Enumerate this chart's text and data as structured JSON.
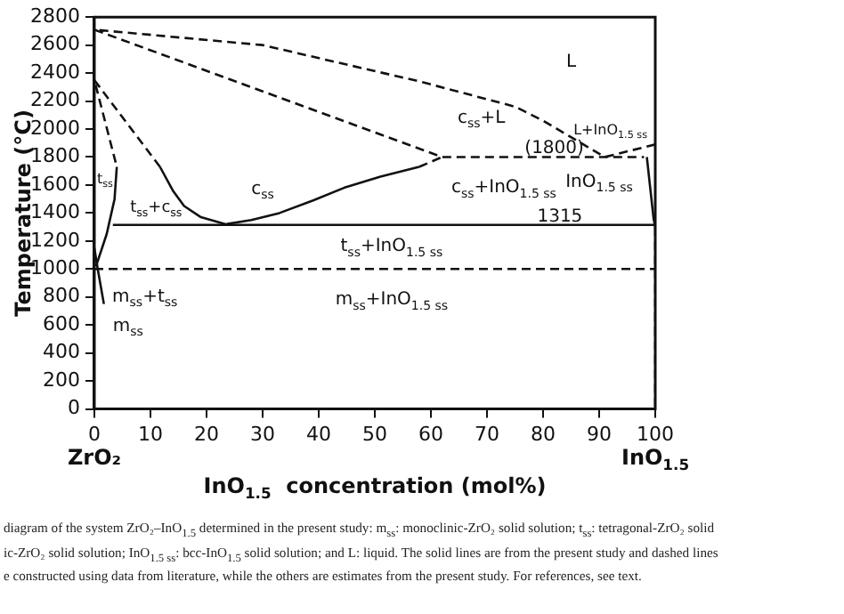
{
  "chart_data": {
    "type": "line",
    "xlabel": "InO$_{1.5}$  concentration (mol%)",
    "ylabel": "Temperature (°C)",
    "xlim": [
      0,
      100
    ],
    "ylim": [
      0,
      2800
    ],
    "xticks": [
      0,
      10,
      20,
      30,
      40,
      50,
      60,
      70,
      80,
      90,
      100
    ],
    "yticks": [
      0,
      200,
      400,
      600,
      800,
      1000,
      1200,
      1400,
      1600,
      1800,
      2000,
      2200,
      2400,
      2600,
      2800
    ],
    "grid": false,
    "legend": false,
    "marker": "none",
    "series": [
      {
        "color": "#111111",
        "line_style": "dashed",
        "x": [
          100,
          91,
          80,
          75,
          58,
          30,
          0,
          62,
          98
        ],
        "values": [
          1890,
          1800,
          2060,
          2160,
          2340,
          2600,
          2710,
          1800,
          1800
        ]
      },
      {
        "color": "#111111",
        "line_style": "solid",
        "x": [
          98.5,
          99.7,
          100
        ],
        "values": [
          1800,
          1360,
          1300
        ]
      },
      {
        "color": "#111111",
        "line_style": "dashed",
        "x": [
          11.7,
          0,
          4
        ],
        "values": [
          1730,
          2350,
          1730
        ]
      },
      {
        "color": "#111111",
        "line_style": "solid",
        "x": [
          11.7,
          14,
          16,
          19,
          23.4,
          28,
          33,
          39,
          44.5,
          51,
          57.9
        ],
        "values": [
          1730,
          1560,
          1450,
          1370,
          1320,
          1350,
          1400,
          1490,
          1580,
          1660,
          1730
        ]
      },
      {
        "color": "#111111",
        "line_style": "dashed",
        "x": [
          57.9,
          62
        ],
        "values": [
          1730,
          1800
        ]
      },
      {
        "color": "#111111",
        "line_style": "solid",
        "x": [
          4,
          3.6,
          2.2,
          0.3
        ],
        "values": [
          1730,
          1500,
          1250,
          1020
        ]
      },
      {
        "color": "#111111",
        "line_style": "solid",
        "x": [
          0,
          0.6,
          1.7
        ],
        "values": [
          1150,
          1000,
          750
        ]
      },
      {
        "color": "#111111",
        "line_style": "solid",
        "x": [
          3.3,
          100
        ],
        "values": [
          1315,
          1315
        ]
      },
      {
        "color": "#111111",
        "line_style": "dashed",
        "x": [
          0,
          100
        ],
        "values": [
          1000,
          1000
        ]
      },
      {
        "color": "#111111",
        "line_style": "dashed",
        "x": [
          100,
          100
        ],
        "values": [
          1300,
          0
        ]
      }
    ],
    "annotations": [
      "L",
      "c$_{ss}$+L",
      "L+InO$_{1.5 ss}$",
      "(1800)",
      "c$_{ss}$+InO$_{1.5 ss}$",
      "InO$_{1.5 ss}$",
      "1315",
      "c$_{ss}$",
      "t$_{ss}$",
      "t$_{ss}$+c$_{ss}$",
      "t$_{ss}$+InO$_{1.5 ss}$",
      "m$_{ss}$+t$_{ss}$",
      "m$_{ss}$+InO$_{1.5 ss}$",
      "m$_{ss}$",
      "ZrO₂",
      "InO$_{1.5}$",
      "diagram of the system ZrO₂–InO$_{1.5}$ determined in the present study: m$_{ss}$: monoclinic-ZrO₂ solid solution; t$_{ss}$: tetragonal-ZrO₂ solid",
      "ic-ZrO₂ solid solution; InO$_{1.5 ss}$: bcc-InO$_{1.5}$ solid solution; and L: liquid. The solid lines are from the present study and dashed lines",
      "e constructed using data from literature, while the others are estimates from the present study. For references, see text."
    ]
  }
}
